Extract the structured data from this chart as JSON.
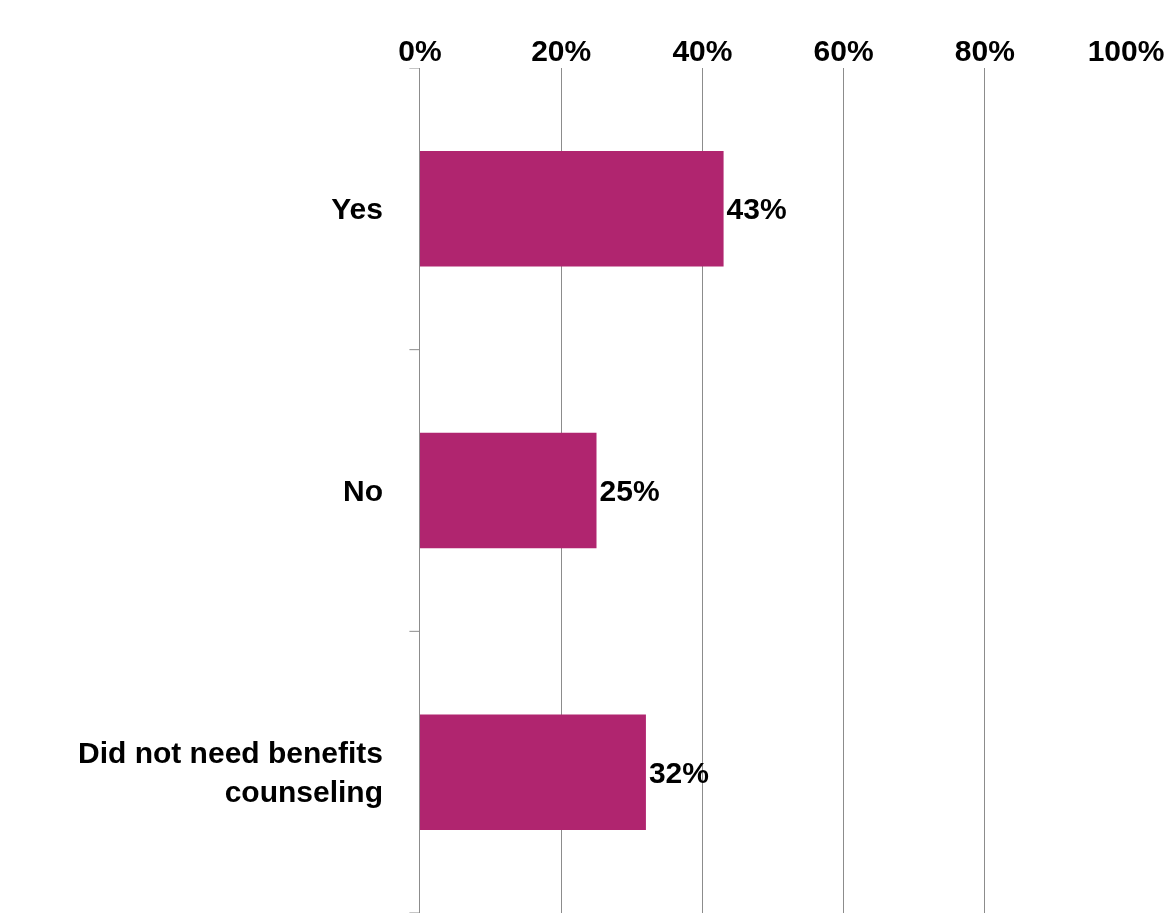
{
  "chart_data": {
    "type": "bar",
    "orientation": "horizontal",
    "categories": [
      "Yes",
      "No",
      "Did not need benefits counseling"
    ],
    "values": [
      43,
      25,
      32
    ],
    "value_labels": [
      "43%",
      "25%",
      "32%"
    ],
    "color": "#b0256f",
    "xlim": [
      0,
      100
    ],
    "xticks": [
      {
        "value": 0,
        "label": "0%"
      },
      {
        "value": 20,
        "label": "20%"
      },
      {
        "value": 40,
        "label": "40%"
      },
      {
        "value": 60,
        "label": "60%"
      },
      {
        "value": 80,
        "label": "80%"
      },
      {
        "value": 100,
        "label": "100%"
      }
    ],
    "grid": "x"
  }
}
